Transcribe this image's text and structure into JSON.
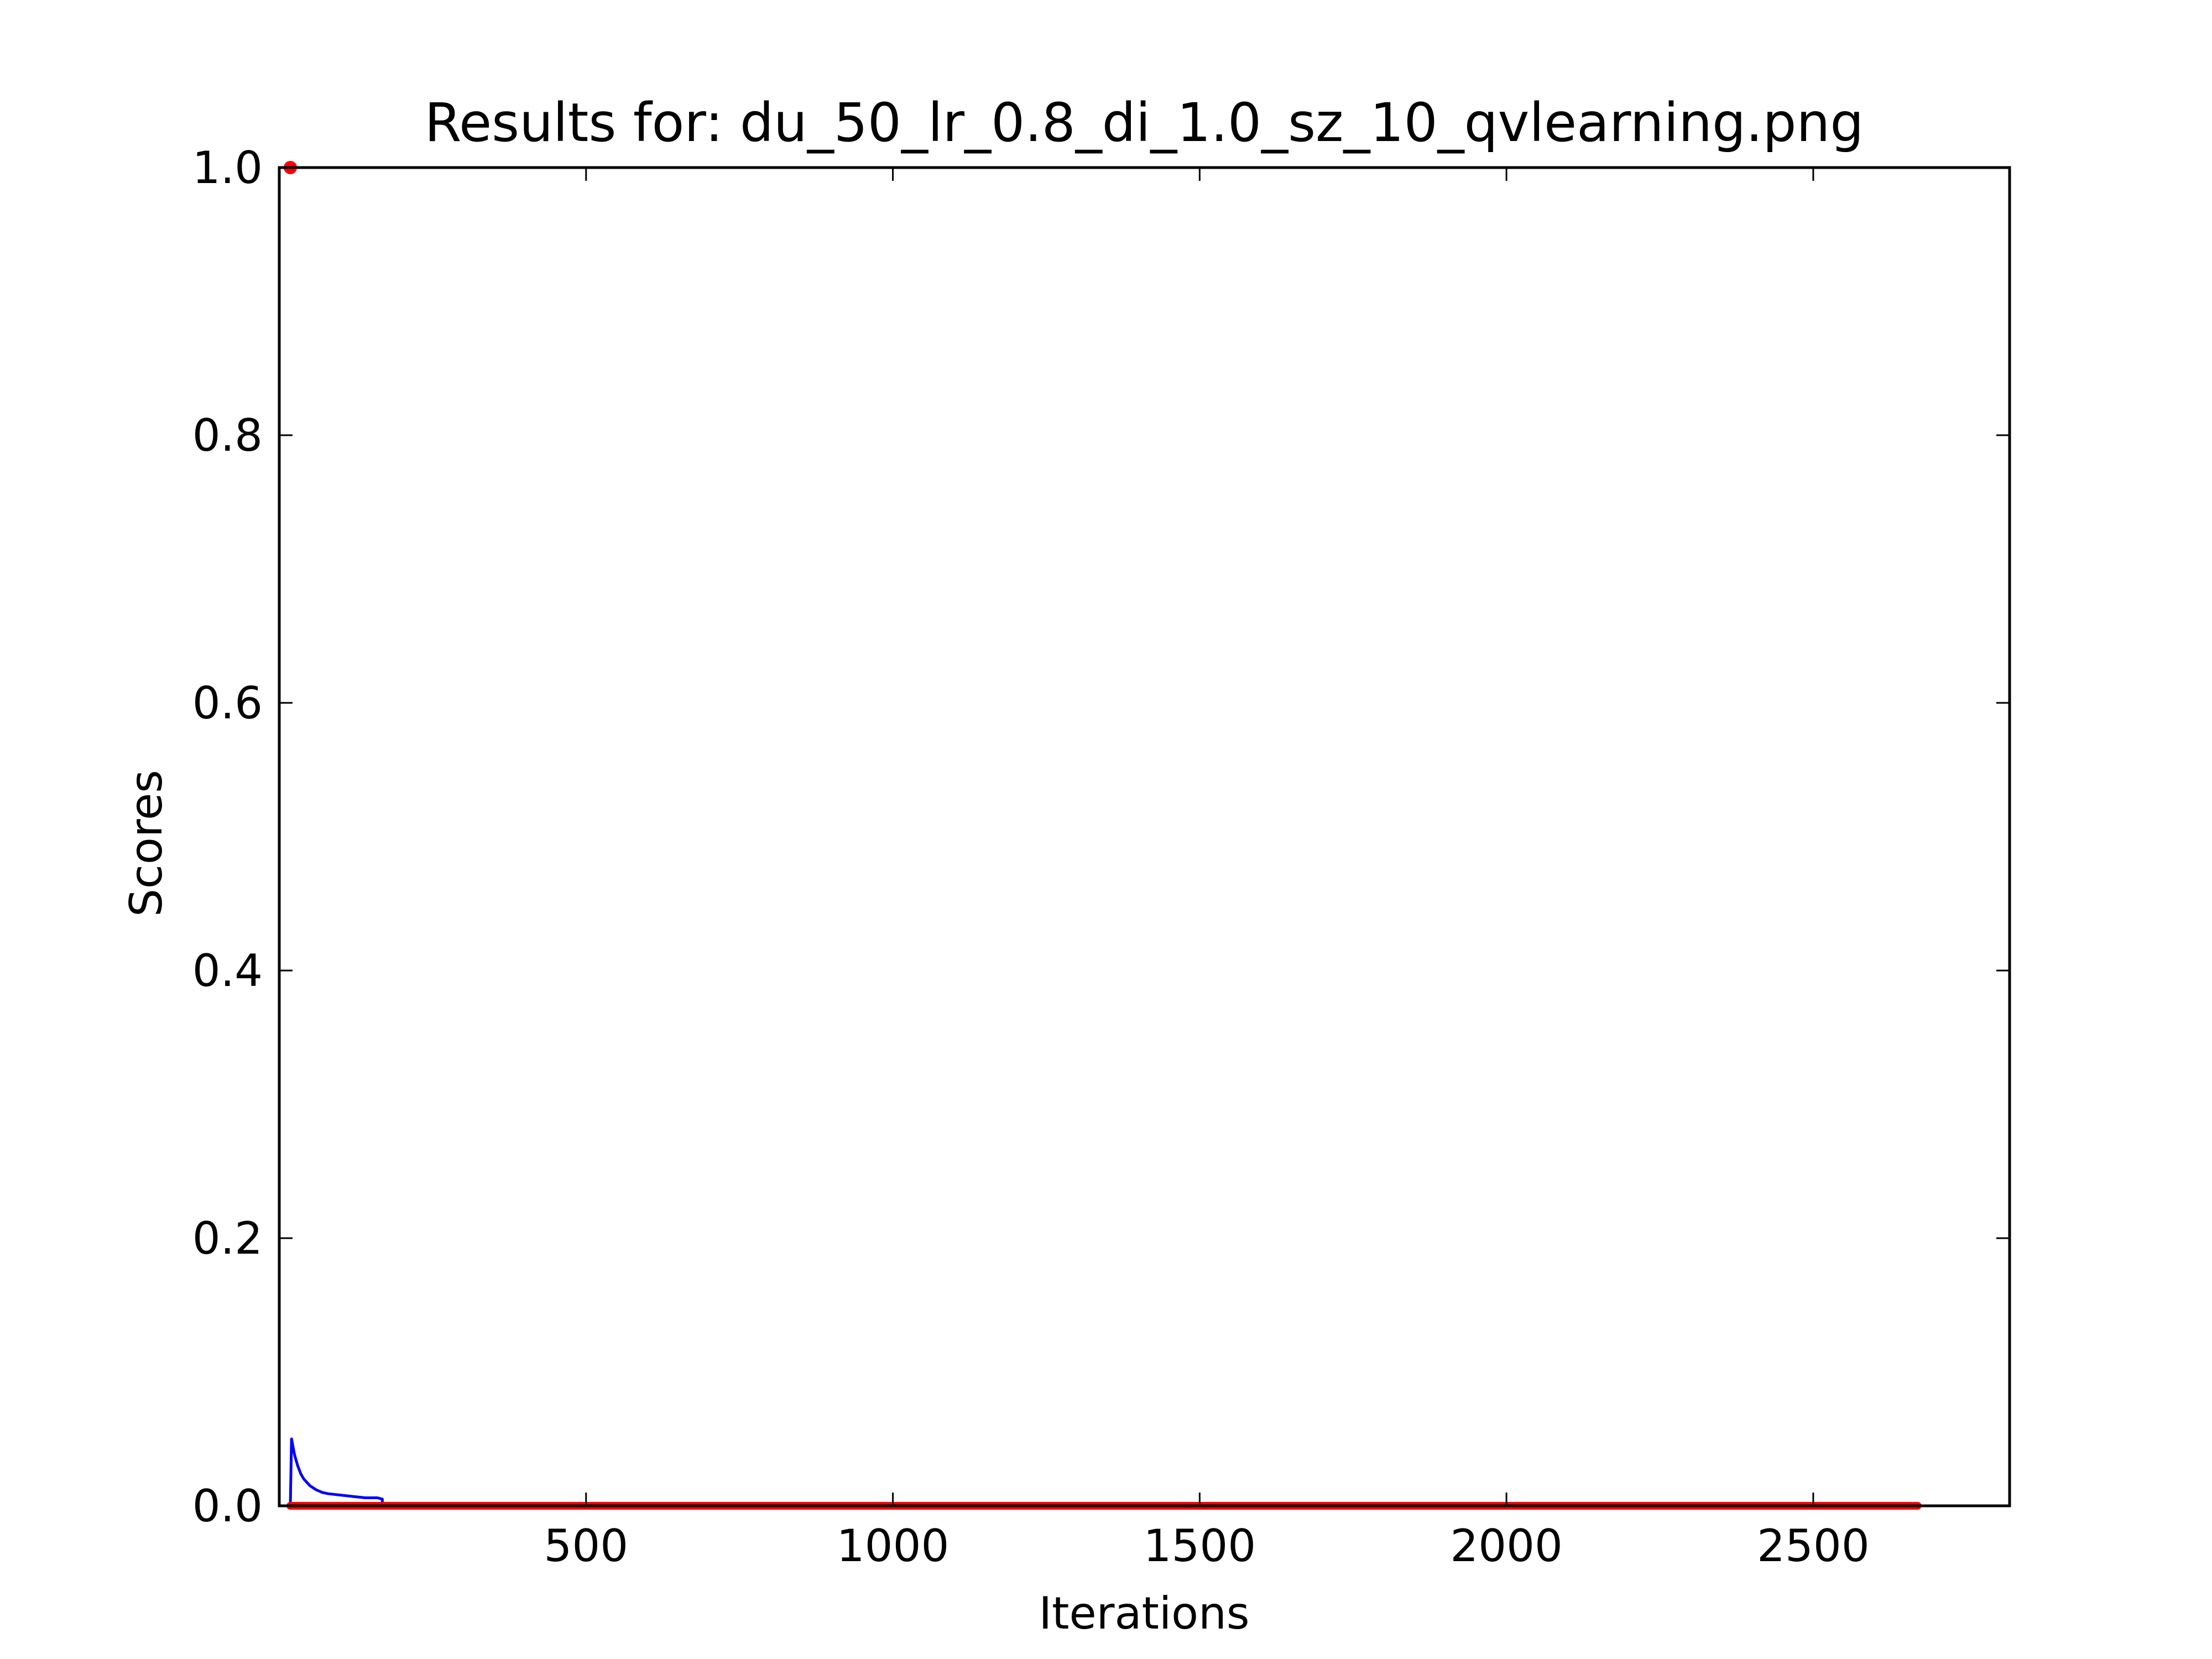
{
  "chart_data": {
    "type": "line",
    "title": "Results for: du_50_lr_0.8_di_1.0_sz_10_qvlearning.png",
    "xlabel": "Iterations",
    "ylabel": "Scores",
    "xlim": [
      0,
      2820
    ],
    "ylim": [
      0.0,
      1.0
    ],
    "x_ticks": [
      500,
      1000,
      1500,
      2000,
      2500
    ],
    "x_tick_labels": [
      "500",
      "1000",
      "1500",
      "2000",
      "2500"
    ],
    "y_ticks": [
      0.0,
      0.2,
      0.4,
      0.6,
      0.8,
      1.0
    ],
    "y_tick_labels": [
      "0.0",
      "0.2",
      "0.4",
      "0.6",
      "0.8",
      "1.0"
    ],
    "grid": false,
    "legend": "none",
    "series": [
      {
        "color": "#0000ff",
        "marker": "none",
        "x": [
          18,
          20,
          22,
          25,
          30,
          35,
          40,
          50,
          60,
          70,
          80,
          100,
          120,
          140,
          160,
          168,
          168
        ],
        "y": [
          0.0,
          0.05,
          0.045,
          0.038,
          0.03,
          0.024,
          0.02,
          0.015,
          0.012,
          0.01,
          0.009,
          0.008,
          0.007,
          0.006,
          0.006,
          0.005,
          0.0
        ]
      },
      {
        "color": "#ff0000",
        "marker": "dot",
        "x": [
          18,
          100,
          500,
          1000,
          1500,
          2000,
          2500,
          2670
        ],
        "y": [
          0.0,
          0.0,
          0.0,
          0.0,
          0.0,
          0.0,
          0.0,
          0.0
        ]
      },
      {
        "color": "#ff0000",
        "marker": "dot",
        "x": [
          18
        ],
        "y": [
          1.0
        ]
      }
    ]
  }
}
